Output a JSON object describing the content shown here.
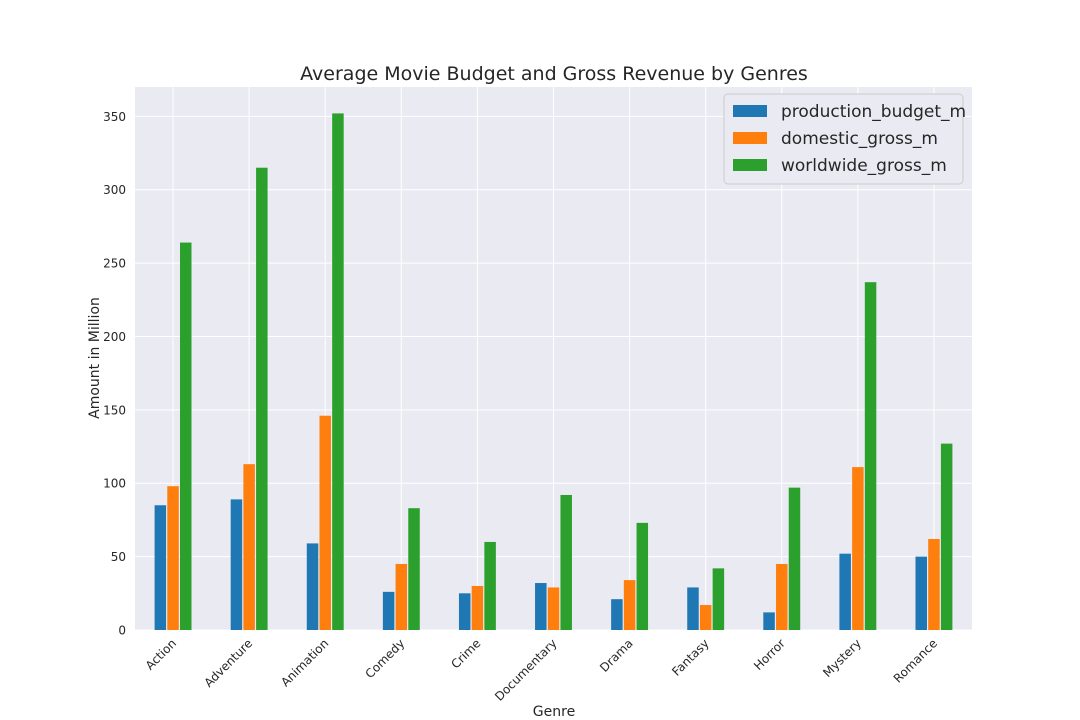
{
  "chart_data": {
    "type": "bar",
    "title": "Average Movie Budget and Gross Revenue by Genres",
    "xlabel": "Genre",
    "ylabel": "Amount in Million",
    "ylim": [
      0,
      370
    ],
    "yticks": [
      0,
      50,
      100,
      150,
      200,
      250,
      300,
      350
    ],
    "grid": true,
    "legend_position": "top-right",
    "categories": [
      "Action",
      "Adventure",
      "Animation",
      "Comedy",
      "Crime",
      "Documentary",
      "Drama",
      "Fantasy",
      "Horror",
      "Mystery",
      "Romance"
    ],
    "series": [
      {
        "name": "production_budget_m",
        "color": "#1f77b4",
        "values": [
          85,
          89,
          59,
          26,
          25,
          32,
          21,
          29,
          12,
          52,
          50
        ]
      },
      {
        "name": "domestic_gross_m",
        "color": "#ff7f0e",
        "values": [
          98,
          113,
          146,
          45,
          30,
          29,
          34,
          17,
          45,
          111,
          62
        ]
      },
      {
        "name": "worldwide_gross_m",
        "color": "#2ca02c",
        "values": [
          264,
          315,
          352,
          83,
          60,
          92,
          73,
          42,
          97,
          237,
          127
        ]
      }
    ]
  }
}
